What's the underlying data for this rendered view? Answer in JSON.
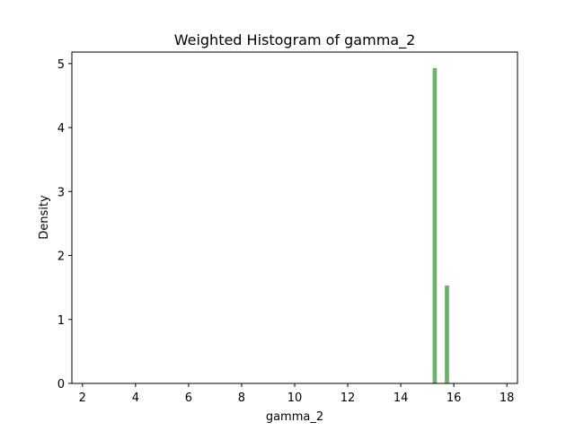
{
  "chart_data": {
    "type": "bar",
    "title": "Weighted Histogram of gamma_2",
    "xlabel": "gamma_2",
    "ylabel": "Density",
    "xlim": [
      1.6,
      18.4
    ],
    "ylim": [
      0,
      5.18
    ],
    "xticks": [
      2,
      4,
      6,
      8,
      10,
      12,
      14,
      16,
      18
    ],
    "yticks": [
      0,
      1,
      2,
      3,
      4,
      5
    ],
    "grid": false,
    "bar_color": "#6ab36a",
    "bins": [
      {
        "x0": 15.2,
        "x1": 15.36,
        "density": 4.93
      },
      {
        "x0": 15.66,
        "x1": 15.82,
        "density": 1.53
      }
    ]
  }
}
